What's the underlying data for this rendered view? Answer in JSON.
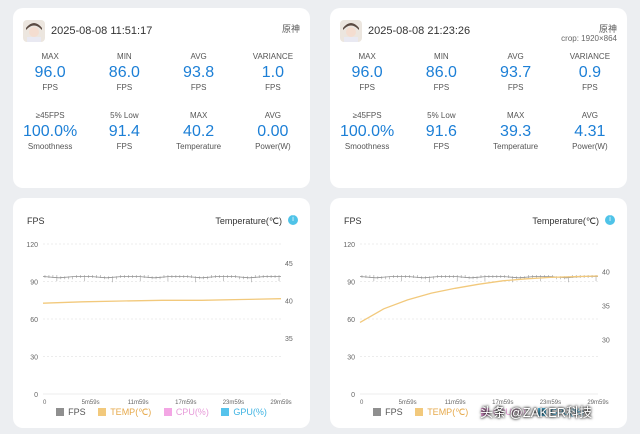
{
  "cards": [
    {
      "timestamp": "2025-08-08 11:51:17",
      "game": "原神",
      "crop": "",
      "stats": [
        {
          "label": "MAX",
          "value": "96.0",
          "unit": "FPS"
        },
        {
          "label": "MIN",
          "value": "86.0",
          "unit": "FPS"
        },
        {
          "label": "AVG",
          "value": "93.8",
          "unit": "FPS"
        },
        {
          "label": "VARIANCE",
          "value": "1.0",
          "unit": "FPS"
        },
        {
          "label": "≥45FPS",
          "value": "100.0%",
          "unit": "Smoothness"
        },
        {
          "label": "5% Low",
          "value": "91.4",
          "unit": "FPS"
        },
        {
          "label": "MAX",
          "value": "40.2",
          "unit": "Temperature"
        },
        {
          "label": "AVG",
          "value": "0.00",
          "unit": "Power(W)"
        }
      ]
    },
    {
      "timestamp": "2025-08-08 21:23:26",
      "game": "原神",
      "crop": "crop: 1920×864",
      "stats": [
        {
          "label": "MAX",
          "value": "96.0",
          "unit": "FPS"
        },
        {
          "label": "MIN",
          "value": "86.0",
          "unit": "FPS"
        },
        {
          "label": "AVG",
          "value": "93.7",
          "unit": "FPS"
        },
        {
          "label": "VARIANCE",
          "value": "0.9",
          "unit": "FPS"
        },
        {
          "label": "≥45FPS",
          "value": "100.0%",
          "unit": "Smoothness"
        },
        {
          "label": "5% Low",
          "value": "91.6",
          "unit": "FPS"
        },
        {
          "label": "MAX",
          "value": "39.3",
          "unit": "Temperature"
        },
        {
          "label": "AVG",
          "value": "4.31",
          "unit": "Power(W)"
        }
      ]
    }
  ],
  "chart_data": [
    {
      "type": "line",
      "title": "FPS",
      "right_title": "Temperature(℃)",
      "yticks_left": [
        "120",
        "90",
        "60",
        "30",
        "0"
      ],
      "ylim_left": [
        0,
        120
      ],
      "yticks_right": [
        "45",
        "40",
        "35"
      ],
      "ylim_right": [
        27.5,
        47.5
      ],
      "xticks": [
        "0",
        "5m59s",
        "11m59s",
        "17m59s",
        "23m59s",
        "29m59s"
      ],
      "xlim": [
        0,
        30
      ],
      "legend_position": "bottom",
      "series": [
        {
          "name": "FPS",
          "color": "#8f8f8f",
          "axis": "left",
          "x": [
            0,
            2,
            4,
            6,
            8,
            10,
            12,
            14,
            16,
            18,
            20,
            22,
            24,
            26,
            28,
            30
          ],
          "values": [
            94,
            93,
            94,
            94,
            93,
            94,
            94,
            93,
            94,
            94,
            93,
            94,
            94,
            93,
            94,
            94
          ]
        },
        {
          "name": "TEMP(℃)",
          "color": "#f2c97c",
          "axis": "right",
          "x": [
            0,
            5,
            10,
            15,
            20,
            25,
            30
          ],
          "values": [
            39.6,
            39.8,
            39.9,
            40.0,
            40.0,
            40.1,
            40.2
          ]
        },
        {
          "name": "CPU(%)",
          "color": "#f3a6e4",
          "axis": "left",
          "x": [],
          "values": []
        },
        {
          "name": "GPU(%)",
          "color": "#56c3ec",
          "axis": "left",
          "x": [],
          "values": []
        }
      ]
    },
    {
      "type": "line",
      "title": "FPS",
      "right_title": "Temperature(℃)",
      "yticks_left": [
        "120",
        "90",
        "60",
        "30",
        "0"
      ],
      "ylim_left": [
        0,
        120
      ],
      "yticks_right": [
        "40",
        "35",
        "30"
      ],
      "ylim_right": [
        22,
        44
      ],
      "xticks": [
        "0",
        "5m59s",
        "11m59s",
        "17m59s",
        "23m59s",
        "29m59s"
      ],
      "xlim": [
        0,
        30
      ],
      "legend_position": "bottom",
      "series": [
        {
          "name": "FPS",
          "color": "#8f8f8f",
          "axis": "left",
          "x": [
            0,
            2,
            4,
            6,
            8,
            10,
            12,
            14,
            16,
            18,
            20,
            22,
            24,
            26,
            28,
            30
          ],
          "values": [
            94,
            93,
            94,
            94,
            93,
            94,
            94,
            93,
            94,
            94,
            93,
            94,
            94,
            93,
            94,
            94
          ]
        },
        {
          "name": "TEMP(℃)",
          "color": "#f2c97c",
          "axis": "right",
          "x": [
            0,
            3,
            6,
            9,
            12,
            15,
            18,
            21,
            24,
            27,
            30
          ],
          "values": [
            32.5,
            34.5,
            35.8,
            36.8,
            37.5,
            38.1,
            38.6,
            38.9,
            39.1,
            39.2,
            39.3
          ]
        },
        {
          "name": "CPU(%)",
          "color": "#f3a6e4",
          "axis": "left",
          "x": [],
          "values": []
        },
        {
          "name": "GPU(%)",
          "color": "#56c3ec",
          "axis": "left",
          "x": [],
          "values": []
        }
      ]
    }
  ],
  "watermark": "头条 @ZAKER科技"
}
